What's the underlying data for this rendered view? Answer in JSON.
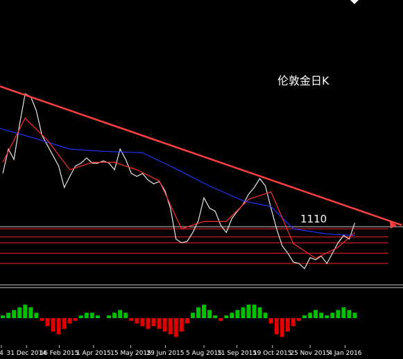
{
  "chart_data": {
    "type": "line",
    "title": "伦敦金日K",
    "level_label": 1110,
    "xlim": [
      -0.5,
      71.5
    ],
    "ylim": [
      1035,
      1420
    ],
    "xticks": [
      {
        "value": -0.25,
        "label": "4"
      },
      {
        "value": 4.25,
        "label": "31 Dec 2014"
      },
      {
        "value": 10.1,
        "label": "16 Feb 2015"
      },
      {
        "value": 16.25,
        "label": "1 Apr 2015"
      },
      {
        "value": 22.9,
        "label": "15 May 2015"
      },
      {
        "value": 29.1,
        "label": "29 Jun 2015"
      },
      {
        "value": 36,
        "label": "5 Aug 2015"
      },
      {
        "value": 41.9,
        "label": "11 Sep 2015"
      },
      {
        "value": 48.25,
        "label": "19 Oct 2015"
      },
      {
        "value": 55,
        "label": "25 Nov 2015"
      },
      {
        "value": 61.25,
        "label": "4 Jan 2016"
      }
    ],
    "series": [
      {
        "color": "#e8e8e8",
        "values": [
          1185,
          1218,
          1204,
          1251,
          1293,
          1289,
          1270,
          1237,
          1223,
          1209,
          1195,
          1166,
          1181,
          1195,
          1199,
          1206,
          1199,
          1199,
          1202,
          1199,
          1190,
          1218,
          1204,
          1185,
          1181,
          1185,
          1176,
          1171,
          1174,
          1162,
          1138,
          1096,
          1091,
          1093,
          1105,
          1121,
          1152,
          1138,
          1134,
          1115,
          1105,
          1124,
          1134,
          1143,
          1157,
          1166,
          1178,
          1168,
          1138,
          1110,
          1087,
          1077,
          1065,
          1063,
          1056,
          1071,
          1068,
          1073,
          1063,
          1077,
          1091,
          1101,
          1096,
          1118
        ]
      },
      {
        "color": "#2233ff",
        "x": [
          -0.5,
          6,
          12,
          18,
          25,
          30,
          37,
          43,
          48,
          52,
          58,
          63
        ],
        "values": [
          1246,
          1232,
          1218,
          1215,
          1213,
          1195,
          1168,
          1148,
          1140,
          1110,
          1103,
          1101
        ]
      },
      {
        "color": "#ff3030",
        "x": [
          0,
          4,
          8,
          12,
          16,
          20,
          24,
          28,
          32,
          36,
          40,
          44,
          48,
          52,
          56,
          60,
          63
        ],
        "values": [
          1200,
          1260,
          1230,
          1190,
          1200,
          1200,
          1190,
          1175,
          1110,
          1120,
          1120,
          1150,
          1160,
          1090,
          1070,
          1085,
          1105
        ]
      }
    ],
    "trendline": {
      "color": "#ff4040",
      "x": [
        -0.5,
        71.4
      ],
      "values": [
        1303,
        1115
      ]
    },
    "levels": {
      "color": "#ff2020",
      "values": [
        1110,
        1099,
        1091,
        1077,
        1063
      ]
    },
    "macd": {
      "ylim": [
        -20,
        20
      ],
      "up_color": "#00c000",
      "down_color": "#e00000",
      "values": [
        2,
        4,
        6,
        8,
        10,
        8,
        4,
        -2,
        -6,
        -10,
        -12,
        -8,
        -4,
        -2,
        2,
        4,
        4,
        2,
        0,
        2,
        4,
        6,
        4,
        -2,
        -4,
        -6,
        -8,
        -6,
        -8,
        -10,
        -12,
        -14,
        -10,
        -4,
        4,
        8,
        10,
        6,
        2,
        -2,
        2,
        4,
        6,
        8,
        10,
        10,
        8,
        4,
        -4,
        -12,
        -14,
        -10,
        -6,
        -2,
        2,
        4,
        6,
        4,
        2,
        4,
        6,
        8,
        6,
        4
      ]
    }
  }
}
